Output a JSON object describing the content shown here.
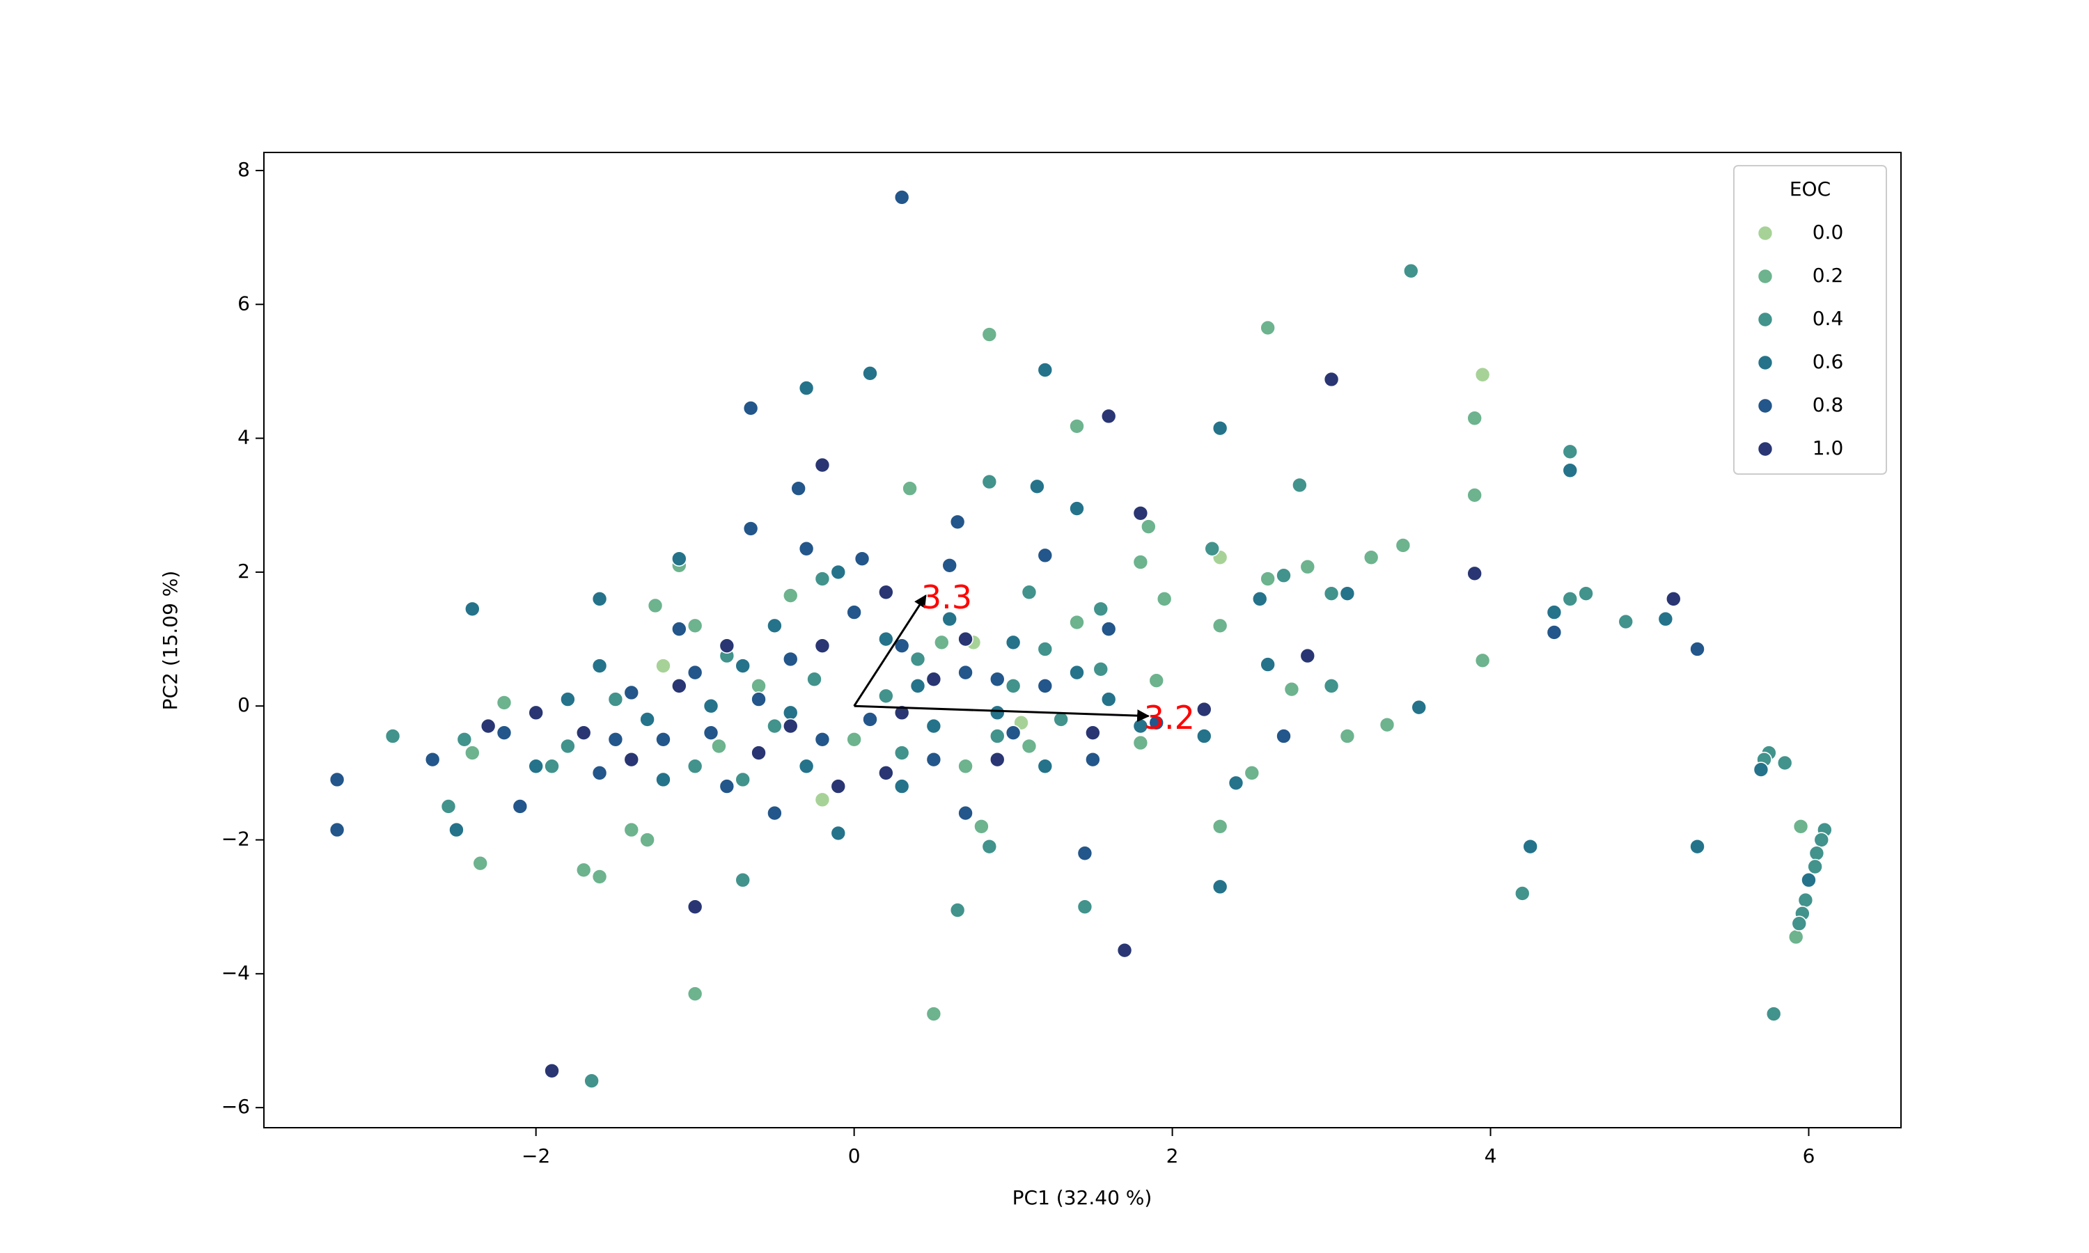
{
  "chart_data": {
    "type": "scatter",
    "xlabel": "PC1 (32.40 %)",
    "ylabel": "PC2 (15.09 %)",
    "xlim": [
      -3.71,
      6.58
    ],
    "ylim": [
      -6.3,
      8.27
    ],
    "xticks": [
      {
        "value": -2,
        "label": "−2"
      },
      0,
      2,
      4,
      6
    ],
    "yticks": [
      {
        "value": -6,
        "label": "−6"
      },
      {
        "value": -4,
        "label": "−4"
      },
      {
        "value": -2,
        "label": "−2"
      },
      0,
      2,
      4,
      6,
      8
    ],
    "grid": false,
    "legend_title": "EOC",
    "legend_loc": "upper right",
    "arrow_color": "#000000",
    "arrow_label_color": "#ff0000",
    "arrows": [
      {
        "label": "3.3",
        "x": [
          0,
          0.45
        ],
        "y": [
          0,
          1.65
        ]
      },
      {
        "label": "3.2",
        "x": [
          0,
          1.85
        ],
        "y": [
          0,
          -0.15
        ]
      }
    ],
    "series": [
      {
        "name": "0.0",
        "color": "#a7d297",
        "x": [
          3.95,
          2.3,
          0.75,
          -0.2,
          1.05,
          -1.2
        ],
        "y": [
          4.95,
          2.22,
          0.95,
          -1.4,
          -0.25,
          0.6
        ]
      },
      {
        "name": "0.2",
        "color": "#6cb38e",
        "x": [
          2.6,
          0.85,
          1.4,
          3.9,
          3.9,
          0.35,
          1.85,
          3.45,
          3.25,
          2.85,
          3.95,
          2.6,
          2.75,
          3.1,
          3.35,
          2.5,
          2.3,
          0.5,
          -1.0,
          -1.7,
          -1.6,
          -2.35,
          -1.1,
          5.95,
          5.92,
          1.8,
          1.95,
          2.3,
          1.9,
          1.8,
          1.1,
          -2.4,
          -2.2,
          -1.3,
          -1.0,
          -1.25,
          -0.4,
          0.55,
          0.0,
          -0.6,
          0.7,
          0.8,
          -1.4,
          -0.85,
          1.4
        ],
        "y": [
          5.65,
          5.55,
          4.18,
          4.3,
          3.15,
          3.25,
          2.68,
          2.4,
          2.22,
          2.08,
          0.68,
          1.9,
          0.25,
          -0.45,
          -0.28,
          -1.0,
          -1.8,
          -4.6,
          -4.3,
          -2.45,
          -2.55,
          -2.35,
          2.1,
          -1.8,
          -3.45,
          2.15,
          1.6,
          1.2,
          0.38,
          -0.55,
          -0.6,
          -0.7,
          0.05,
          -2.0,
          1.2,
          1.5,
          1.65,
          0.95,
          -0.5,
          0.3,
          -0.9,
          -1.8,
          -1.85,
          -0.6,
          1.25
        ]
      },
      {
        "name": "0.4",
        "color": "#41938c",
        "x": [
          3.5,
          0.85,
          2.8,
          2.25,
          2.7,
          3.0,
          4.5,
          4.5,
          4.6,
          4.85,
          3.0,
          4.2,
          1.45,
          0.65,
          0.85,
          -1.65,
          -0.7,
          -2.9,
          -2.55,
          5.75,
          5.72,
          5.85,
          6.1,
          6.08,
          6.05,
          6.04,
          5.98,
          5.96,
          5.94,
          5.78,
          1.55,
          1.55,
          1.1,
          1.0,
          1.3,
          0.4,
          -0.2,
          -0.5,
          -1.5,
          -1.0,
          0.3,
          1.2,
          -0.8,
          -1.8,
          0.9,
          -0.25,
          -0.7,
          0.2,
          -2.45,
          -1.9
        ],
        "y": [
          6.5,
          3.35,
          3.3,
          2.35,
          1.95,
          1.68,
          3.8,
          1.6,
          1.68,
          1.26,
          0.3,
          -2.8,
          -3.0,
          -3.05,
          -2.1,
          -5.6,
          -2.6,
          -0.45,
          -1.5,
          -0.7,
          -0.8,
          -0.85,
          -1.85,
          -2.0,
          -2.2,
          -2.4,
          -2.9,
          -3.1,
          -3.25,
          -4.6,
          0.55,
          1.45,
          1.7,
          0.3,
          -0.2,
          0.7,
          1.9,
          -0.3,
          0.1,
          -0.9,
          -0.7,
          0.85,
          0.75,
          -0.6,
          -0.45,
          0.4,
          -1.1,
          0.15,
          -0.5,
          -0.9
        ]
      },
      {
        "name": "0.6",
        "color": "#24738a",
        "x": [
          0.1,
          1.2,
          -0.3,
          2.3,
          1.15,
          1.4,
          3.1,
          4.4,
          5.1,
          2.55,
          2.6,
          3.55,
          2.4,
          2.3,
          4.25,
          5.3,
          4.5,
          5.7,
          6.0,
          -2.5,
          -2.4,
          -1.1,
          -1.6,
          -0.1,
          0.6,
          1.0,
          1.6,
          2.2,
          1.8,
          0.5,
          -0.3,
          -0.9,
          -1.3,
          -1.6,
          -2.0,
          0.3,
          -0.5,
          0.9,
          1.2,
          -1.2,
          -0.1,
          0.4,
          -0.7,
          1.4,
          -0.4,
          0.2,
          -1.8
        ],
        "y": [
          4.97,
          5.02,
          4.75,
          4.15,
          3.28,
          2.95,
          1.68,
          1.4,
          1.3,
          1.6,
          0.62,
          -0.02,
          -1.15,
          -2.7,
          -2.1,
          -2.1,
          3.52,
          -0.95,
          -2.6,
          -1.85,
          1.45,
          2.2,
          1.6,
          2.0,
          1.3,
          0.95,
          0.1,
          -0.45,
          -0.3,
          -0.3,
          -0.9,
          0.0,
          -0.2,
          0.6,
          -0.9,
          -1.2,
          1.2,
          -0.1,
          -0.9,
          -1.1,
          -1.9,
          0.3,
          0.6,
          0.5,
          -0.1,
          1.0,
          0.1
        ]
      },
      {
        "name": "0.8",
        "color": "#23568a",
        "x": [
          0.3,
          -0.65,
          4.4,
          5.3,
          2.7,
          1.45,
          -3.25,
          -3.25,
          -2.65,
          -0.35,
          0.65,
          0.05,
          -0.65,
          -1.1,
          -0.3,
          0.6,
          1.2,
          1.6,
          1.9,
          1.2,
          0.7,
          0.1,
          -0.4,
          -0.9,
          -1.4,
          -1.6,
          -2.1,
          -0.5,
          0.7,
          1.5,
          -1.0,
          -0.2,
          0.3,
          -0.8,
          -1.2,
          0.9,
          -0.6,
          0.0,
          -1.5,
          0.5,
          -2.2,
          1.0
        ],
        "y": [
          7.6,
          4.45,
          1.1,
          0.85,
          -0.45,
          -2.2,
          -1.1,
          -1.85,
          -0.8,
          3.25,
          2.75,
          2.2,
          2.65,
          1.15,
          2.35,
          2.1,
          2.25,
          1.15,
          -0.25,
          0.3,
          0.5,
          -0.2,
          0.7,
          -0.4,
          0.2,
          -1.0,
          -1.5,
          -1.6,
          -1.6,
          -0.8,
          0.5,
          -0.5,
          0.9,
          -1.2,
          -0.5,
          0.4,
          0.1,
          1.4,
          -0.5,
          -0.8,
          -0.4,
          -0.4
        ]
      },
      {
        "name": "1.0",
        "color": "#293673",
        "x": [
          3.0,
          1.6,
          -0.2,
          1.8,
          3.9,
          5.15,
          2.85,
          1.7,
          -1.0,
          -1.9,
          -2.3,
          -2.0,
          -1.1,
          -0.6,
          -0.2,
          0.2,
          0.7,
          1.5,
          -0.1,
          -0.8,
          -1.4,
          0.3,
          0.9,
          -0.4,
          -1.7,
          0.2,
          2.2,
          0.5
        ],
        "y": [
          4.88,
          4.33,
          3.6,
          2.88,
          1.98,
          1.6,
          0.75,
          -3.65,
          -3.0,
          -5.45,
          -0.3,
          -0.1,
          0.3,
          -0.7,
          0.9,
          1.7,
          1.0,
          -0.4,
          -1.2,
          0.9,
          -0.8,
          -0.1,
          -0.8,
          -0.3,
          -0.4,
          -1.0,
          -0.05,
          0.4
        ]
      }
    ]
  }
}
